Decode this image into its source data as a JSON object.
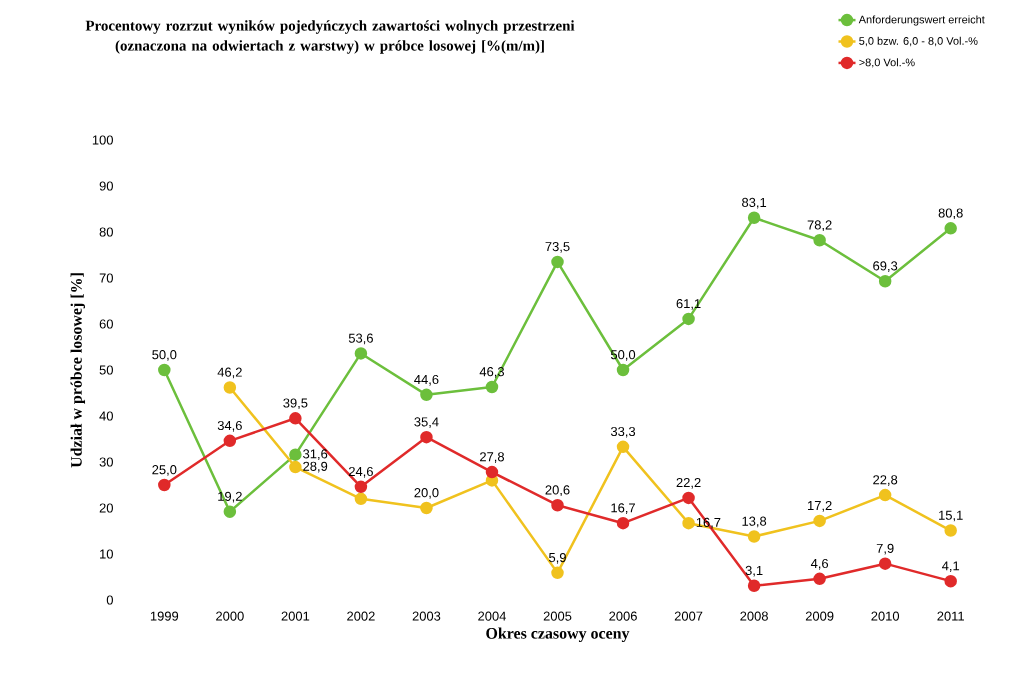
{
  "chart_data": {
    "type": "line",
    "title": "**Procentowy rozrzut wyników pojedyńczych zawartości wolnych przestrzeni (oznaczona na odwiertach z warstwy) w próbce losowej [%(m/m)]**",
    "xlabel": "**Okres czasowy oceny**",
    "ylabel": "**Udział w próbce losowej [%]**",
    "categories": [
      "1999",
      "2000",
      "2001",
      "2002",
      "2003",
      "2004",
      "2005",
      "2006",
      "2007",
      "2008",
      "2009",
      "2010",
      "2011"
    ],
    "series": [
      {
        "name": "Anforderungswert erreicht",
        "color": "#6cbf3c",
        "values": [
          50.0,
          19.2,
          31.6,
          53.6,
          44.6,
          46.3,
          73.5,
          50.0,
          61.1,
          83.1,
          78.2,
          69.3,
          80.8
        ],
        "value_labels": [
          "50,0",
          "19,2",
          "31,6",
          "53,6",
          "44,6",
          "46,3",
          "73,5",
          "50,0",
          "61,1",
          "83,1",
          "78,2",
          "69,3",
          "80,8"
        ]
      },
      {
        "name": "5,0 bzw. 6,0 - 8,0 Vol.-%",
        "color": "#f0c21e",
        "values": [
          null,
          46.2,
          28.9,
          22,
          20.0,
          26,
          5.9,
          33.3,
          16.7,
          13.8,
          17.2,
          22.8,
          15.1
        ],
        "value_labels": [
          null,
          "46,2",
          "28,9",
          null,
          "20,0",
          null,
          "5,9",
          "33,3",
          "16,7",
          "13,8",
          "17,2",
          "22,8",
          "15,1"
        ]
      },
      {
        "name": ">8,0 Vol.-%",
        "color": "#e02a2a",
        "values": [
          25.0,
          34.6,
          39.5,
          24.6,
          35.4,
          27.8,
          20.6,
          16.7,
          22.2,
          3.1,
          4.6,
          7.9,
          4.1
        ],
        "value_labels": [
          "25,0",
          "34,6",
          "39,5",
          "24,6",
          "35,4",
          "27,8",
          "20,6",
          "16,7",
          "22,2",
          "3,1",
          "4,6",
          "7,9",
          "4,1"
        ]
      }
    ],
    "ylim": [
      0,
      100
    ],
    "yticks": [
      0,
      10,
      20,
      30,
      40,
      50,
      60,
      70,
      80,
      90,
      100
    ],
    "grid": false,
    "legend": "top right",
    "marker": "circle",
    "line_style": "solid"
  }
}
